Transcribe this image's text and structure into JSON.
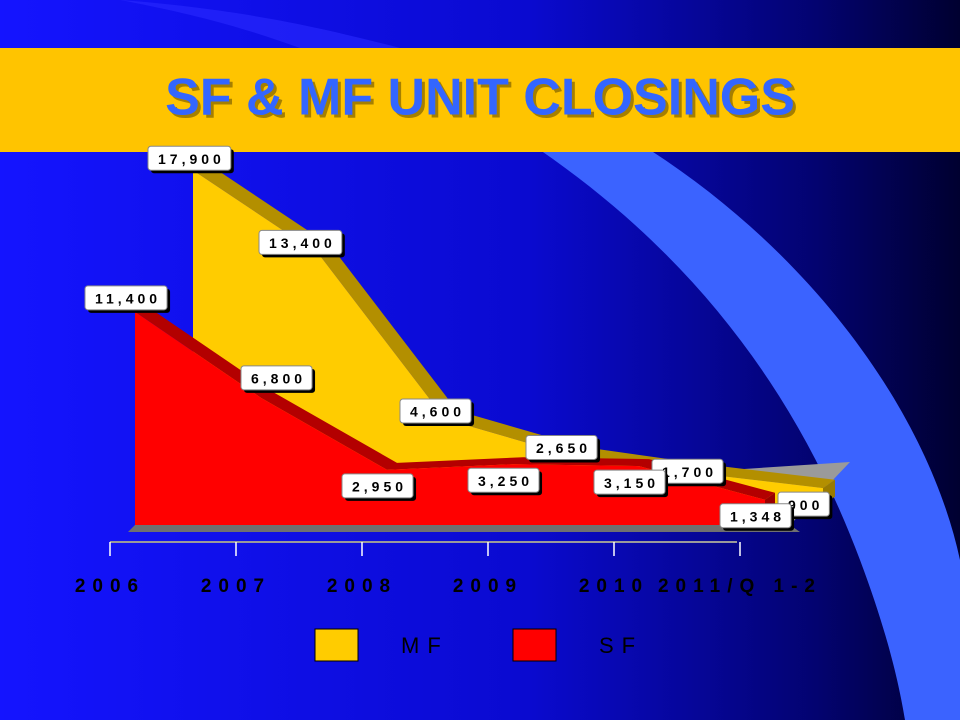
{
  "chart_data": {
    "type": "area3d",
    "title": "SF & MF UNIT CLOSINGS",
    "categories": [
      "2006",
      "2007",
      "2008",
      "2009",
      "2010",
      "2011/Q 1-2"
    ],
    "series": [
      {
        "name": "MF",
        "color": "#ffcc00",
        "values": [
          17900,
          13400,
          4600,
          2650,
          1700,
          900
        ],
        "value_labels": [
          "17,900",
          "13,400",
          "4,600",
          "2,650",
          "1,700",
          "900"
        ]
      },
      {
        "name": "SF",
        "color": "#ff0000",
        "values": [
          11400,
          6800,
          2950,
          3250,
          3150,
          1348
        ],
        "value_labels": [
          "11,400",
          "6,800",
          "2,950",
          "3,250",
          "3,150",
          "1,348"
        ]
      }
    ],
    "legend": "bottom"
  }
}
